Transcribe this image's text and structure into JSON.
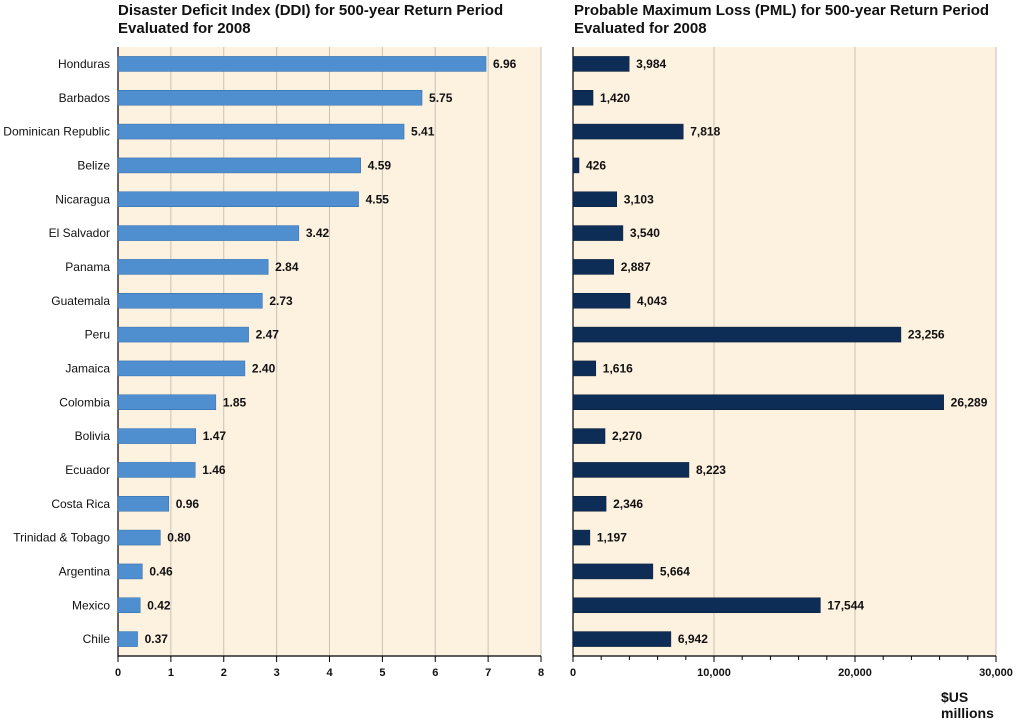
{
  "chart_data": [
    {
      "type": "bar",
      "orientation": "horizontal",
      "title": "Disaster Deficit Index (DDI) for 500-year Return Period Evaluated for 2008",
      "title_lines": [
        "Disaster Deficit Index (DDI) for 500-year Return Period",
        "Evaluated for 2008"
      ],
      "categories": [
        "Honduras",
        "Barbados",
        "Dominican Republic",
        "Belize",
        "Nicaragua",
        "El Salvador",
        "Panama",
        "Guatemala",
        "Peru",
        "Jamaica",
        "Colombia",
        "Bolivia",
        "Ecuador",
        "Costa Rica",
        "Trinidad & Tobago",
        "Argentina",
        "Mexico",
        "Chile"
      ],
      "values": [
        6.96,
        5.75,
        5.41,
        4.59,
        4.55,
        3.42,
        2.84,
        2.73,
        2.47,
        2.4,
        1.85,
        1.47,
        1.46,
        0.96,
        0.8,
        0.46,
        0.42,
        0.37
      ],
      "value_labels": [
        "6.96",
        "5.75",
        "5.41",
        "4.59",
        "4.55",
        "3.42",
        "2.84",
        "2.73",
        "2.47",
        "2.40",
        "1.85",
        "1.47",
        "1.46",
        "0.96",
        "0.80",
        "0.46",
        "0.42",
        "0.37"
      ],
      "xlim": [
        0,
        8
      ],
      "xticks": [
        0,
        1,
        2,
        3,
        4,
        5,
        6,
        7,
        8
      ],
      "xtick_labels": [
        "0",
        "1",
        "2",
        "3",
        "4",
        "5",
        "6",
        "7",
        "8"
      ],
      "xlabel": "",
      "ylabel": "",
      "grid": "vertical",
      "colors": {
        "bar": "#4f8fcf",
        "bar_edge": "#2f6aa8",
        "background": "#fdf1e0",
        "grid": "#c9c2b8"
      }
    },
    {
      "type": "bar",
      "orientation": "horizontal",
      "title": "Probable Maximum Loss (PML) for 500-year Return Period Evaluated for 2008",
      "title_lines": [
        "Probable Maximum Loss (PML) for 500-year Return Period",
        "Evaluated for 2008"
      ],
      "categories": [
        "Honduras",
        "Barbados",
        "Dominican Republic",
        "Belize",
        "Nicaragua",
        "El Salvador",
        "Panama",
        "Guatemala",
        "Peru",
        "Jamaica",
        "Colombia",
        "Bolivia",
        "Ecuador",
        "Costa Rica",
        "Trinidad & Tobago",
        "Argentina",
        "Mexico",
        "Chile"
      ],
      "values": [
        3984,
        1420,
        7818,
        426,
        3103,
        3540,
        2887,
        4043,
        23256,
        1616,
        26289,
        2270,
        8223,
        2346,
        1197,
        5664,
        17544,
        6942
      ],
      "value_labels": [
        "3,984",
        "1,420",
        "7,818",
        "426",
        "3,103",
        "3,540",
        "2,887",
        "4,043",
        "23,256",
        "1,616",
        "26,289",
        "2,270",
        "8,223",
        "2,346",
        "1,197",
        "5,664",
        "17,544",
        "6,942"
      ],
      "xlim": [
        0,
        30000
      ],
      "xticks": [
        0,
        10000,
        20000,
        30000
      ],
      "xtick_labels": [
        "0",
        "10,000",
        "20,000",
        "30,000"
      ],
      "minor_ticks": 5,
      "xlabel": "$US millions",
      "ylabel": "",
      "grid": "vertical",
      "colors": {
        "bar": "#0e2d56",
        "bar_edge": "#071a35",
        "background": "#fdf1e0",
        "grid": "#c9c2b8"
      }
    }
  ]
}
